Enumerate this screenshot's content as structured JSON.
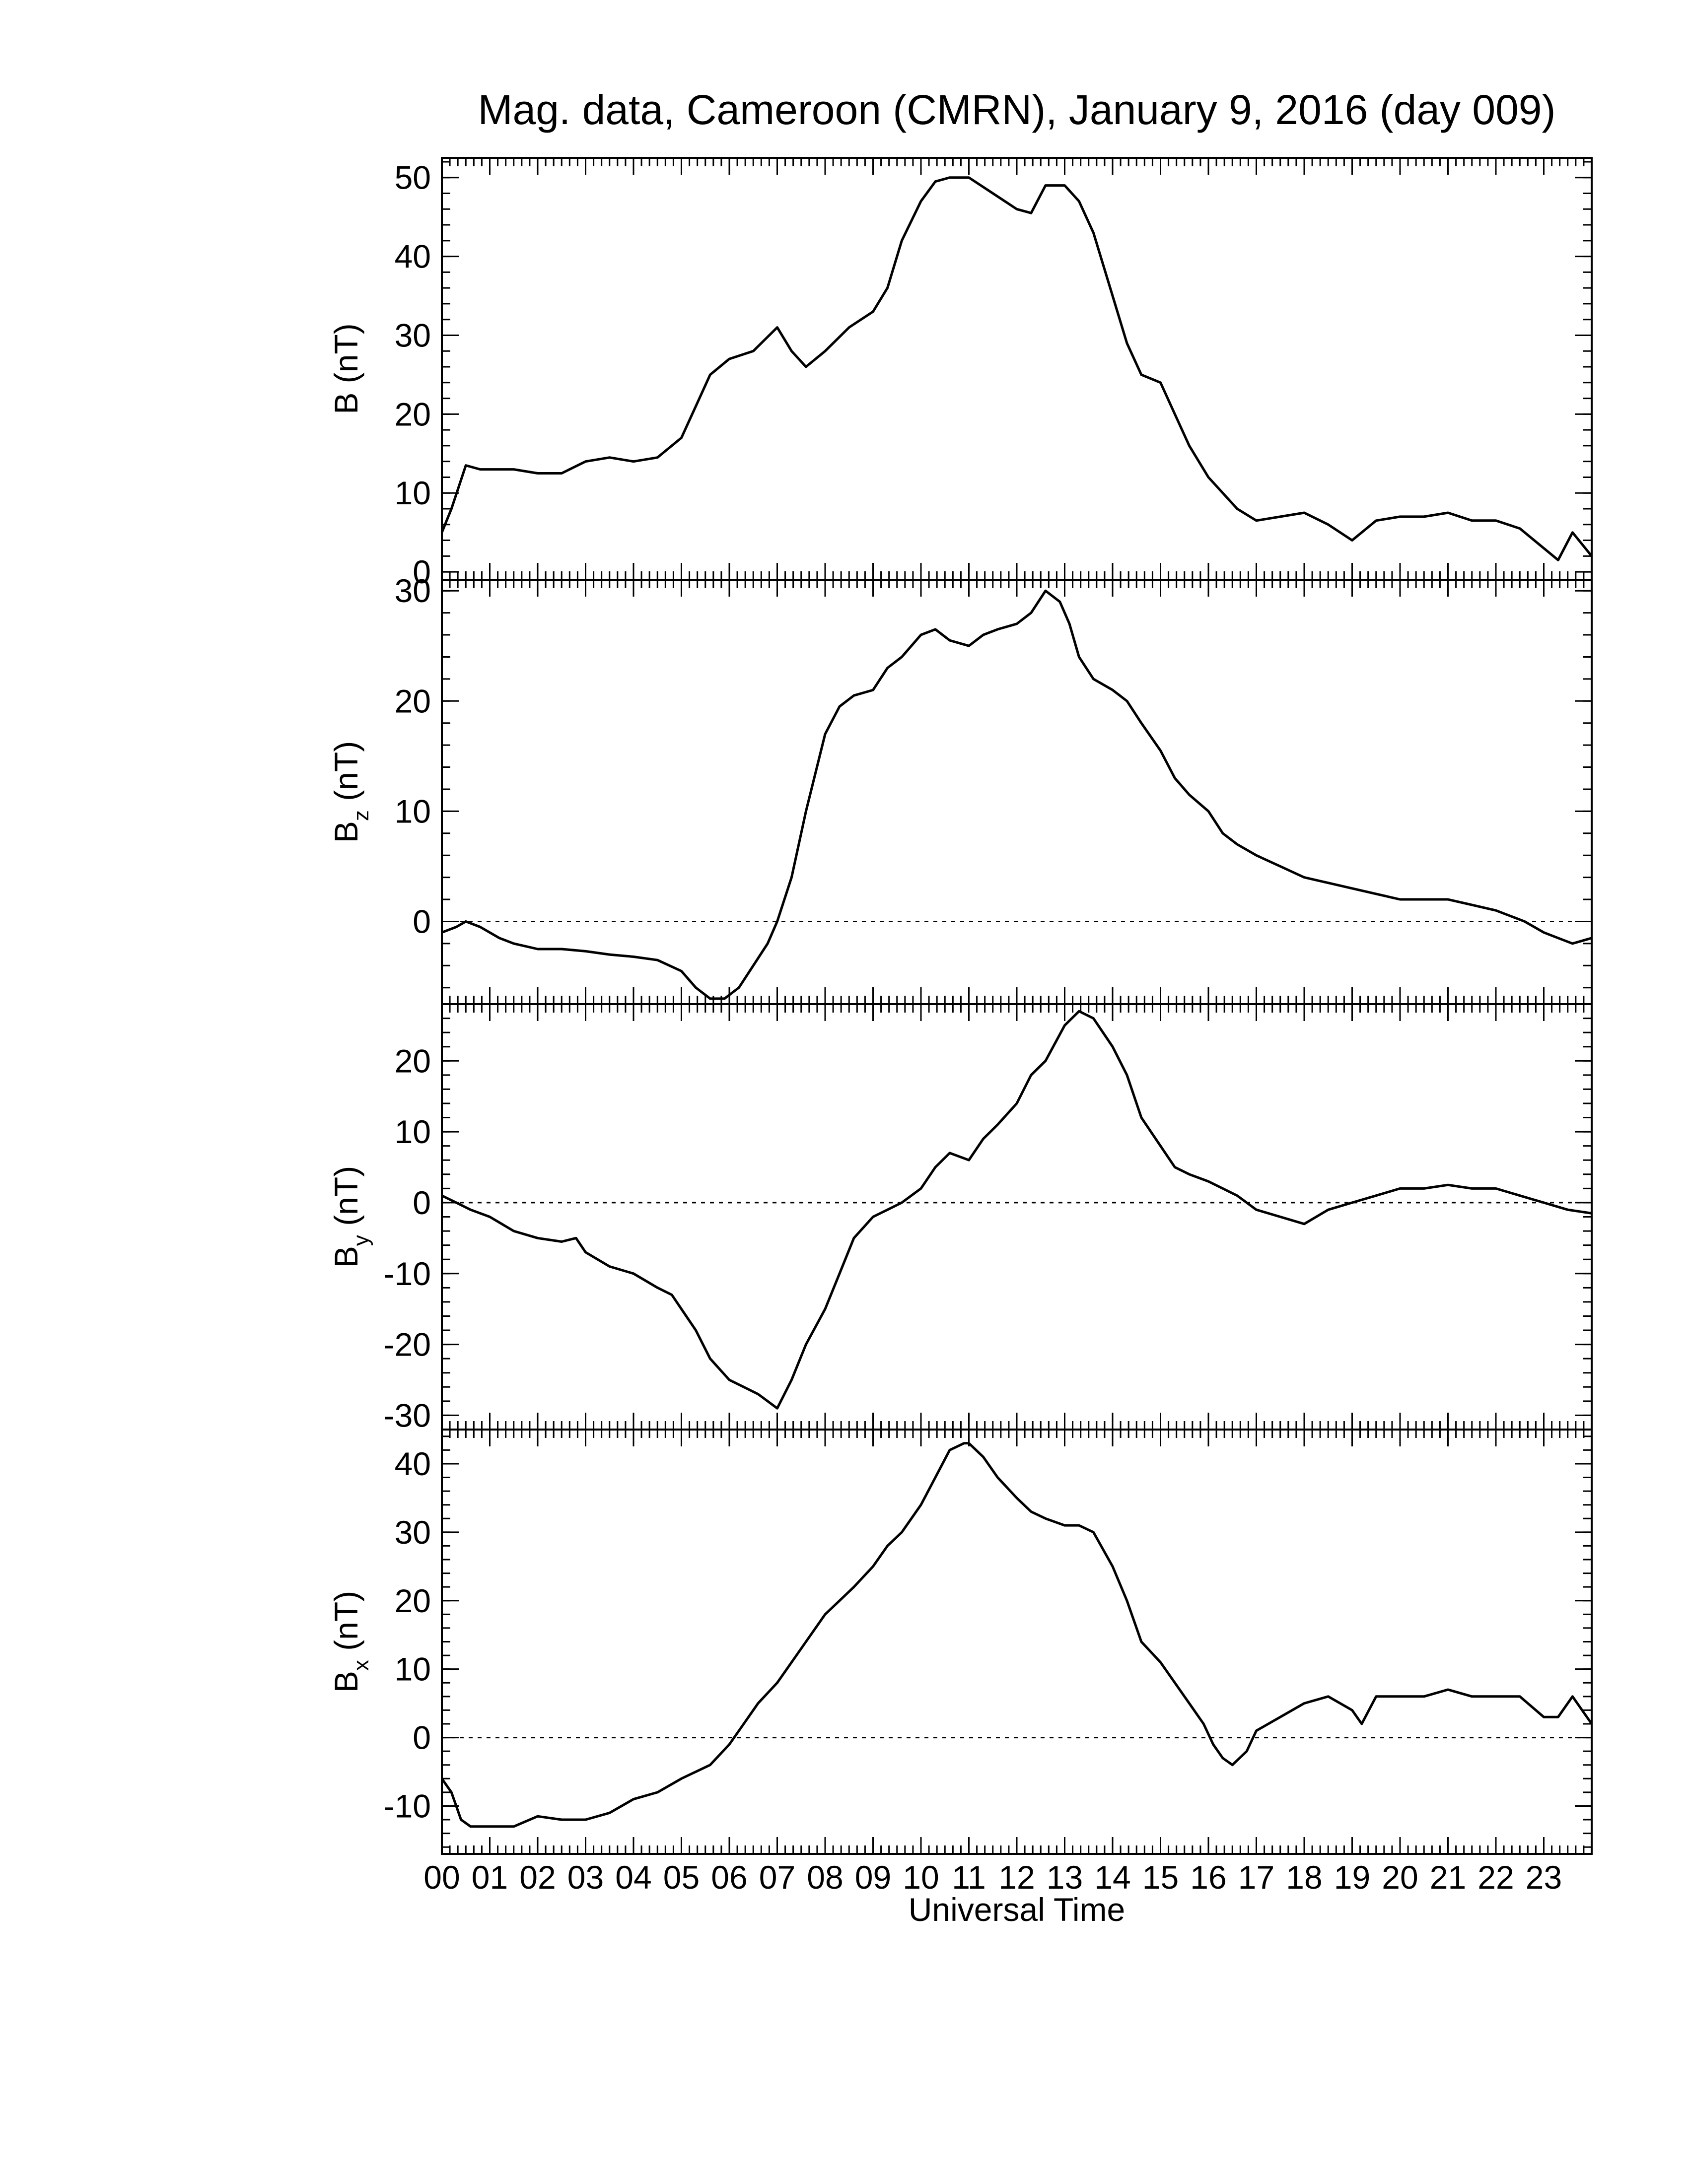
{
  "chart_data": {
    "type": "line",
    "title": "Mag. data, Cameroon (CMRN), January 9, 2016 (day 009)",
    "xlabel": "Universal Time",
    "x_unit": "hour",
    "xlim": [
      0,
      24
    ],
    "x_ticks": [
      "00",
      "01",
      "02",
      "03",
      "04",
      "05",
      "06",
      "07",
      "08",
      "09",
      "10",
      "11",
      "12",
      "13",
      "14",
      "15",
      "16",
      "17",
      "18",
      "19",
      "20",
      "21",
      "22",
      "23"
    ],
    "grid": false,
    "panels": [
      {
        "id": "B",
        "ylabel": "B (nT)",
        "ylabel_main": "B",
        "ylabel_sub": "",
        "ylabel_unit": "(nT)",
        "ylim": [
          -1,
          52.5
        ],
        "yticks": [
          0,
          10,
          20,
          30,
          40,
          50
        ],
        "zero_line": false,
        "series": [
          {
            "x": [
              0,
              0.2,
              0.5,
              0.8,
              1.2,
              1.5,
              2,
              2.5,
              3,
              3.5,
              4,
              4.5,
              5,
              5.3,
              5.6,
              6,
              6.5,
              7,
              7.3,
              7.6,
              8,
              8.5,
              9,
              9.3,
              9.6,
              10,
              10.3,
              10.6,
              11,
              11.5,
              12,
              12.3,
              12.6,
              13,
              13.3,
              13.6,
              14,
              14.3,
              14.6,
              15,
              15.3,
              15.6,
              16,
              16.3,
              16.6,
              17,
              17.5,
              18,
              18.5,
              19,
              19.2,
              19.5,
              20,
              20.5,
              21,
              21.5,
              22,
              22.5,
              23,
              23.3,
              23.6,
              24
            ],
            "y": [
              5,
              8,
              13.5,
              13,
              13,
              13,
              12.5,
              12.5,
              14,
              14.5,
              14,
              14.5,
              17,
              21,
              25,
              27,
              28,
              31,
              28,
              26,
              28,
              31,
              33,
              36,
              42,
              47,
              49.5,
              50,
              50,
              48,
              46,
              45.5,
              49,
              49,
              47,
              43,
              35,
              29,
              25,
              24,
              20,
              16,
              12,
              10,
              8,
              6.5,
              7,
              7.5,
              6,
              4,
              5,
              6.5,
              7,
              7,
              7.5,
              6.5,
              6.5,
              5.5,
              3,
              1.5,
              5,
              2
            ]
          }
        ]
      },
      {
        "id": "Bz",
        "ylabel": "Bz (nT)",
        "ylabel_main": "B",
        "ylabel_sub": "z",
        "ylabel_unit": "(nT)",
        "ylim": [
          -7.5,
          31
        ],
        "yticks": [
          0,
          10,
          20,
          30
        ],
        "zero_line": true,
        "series": [
          {
            "x": [
              0,
              0.3,
              0.5,
              0.8,
              1.2,
              1.5,
              2,
              2.5,
              3,
              3.5,
              4,
              4.5,
              5,
              5.3,
              5.6,
              5.9,
              6.2,
              6.5,
              6.8,
              7,
              7.3,
              7.6,
              8,
              8.3,
              8.6,
              9,
              9.3,
              9.6,
              10,
              10.3,
              10.6,
              11,
              11.3,
              11.6,
              12,
              12.3,
              12.6,
              12.9,
              13.1,
              13.3,
              13.6,
              14,
              14.3,
              14.6,
              15,
              15.3,
              15.6,
              16,
              16.3,
              16.6,
              17,
              17.5,
              18,
              18.5,
              19,
              19.5,
              20,
              20.5,
              21,
              21.5,
              22,
              22.3,
              22.6,
              23,
              23.3,
              23.6,
              24
            ],
            "y": [
              -1,
              -0.5,
              0,
              -0.5,
              -1.5,
              -2,
              -2.5,
              -2.5,
              -2.7,
              -3,
              -3.2,
              -3.5,
              -4.5,
              -6,
              -7,
              -7,
              -6,
              -4,
              -2,
              0,
              4,
              10,
              17,
              19.5,
              20.5,
              21,
              23,
              24,
              26,
              26.5,
              25.5,
              25,
              26,
              26.5,
              27,
              28,
              30,
              29,
              27,
              24,
              22,
              21,
              20,
              18,
              15.5,
              13,
              11.5,
              10,
              8,
              7,
              6,
              5,
              4,
              3.5,
              3,
              2.5,
              2,
              2,
              2,
              1.5,
              1,
              0.5,
              0,
              -1,
              -1.5,
              -2,
              -1.5
            ]
          }
        ]
      },
      {
        "id": "By",
        "ylabel": "By (nT)",
        "ylabel_main": "B",
        "ylabel_sub": "y",
        "ylabel_unit": "(nT)",
        "ylim": [
          -32,
          28
        ],
        "yticks": [
          -30,
          -20,
          -10,
          0,
          10,
          20
        ],
        "zero_line": true,
        "series": [
          {
            "x": [
              0,
              0.3,
              0.6,
              1,
              1.5,
              2,
              2.5,
              2.8,
              3,
              3.5,
              4,
              4.5,
              4.8,
              5,
              5.3,
              5.6,
              6,
              6.3,
              6.6,
              6.8,
              7,
              7.3,
              7.6,
              8,
              8.3,
              8.6,
              9,
              9.3,
              9.6,
              10,
              10.3,
              10.6,
              11,
              11.3,
              11.6,
              12,
              12.3,
              12.6,
              13,
              13.3,
              13.6,
              14,
              14.3,
              14.6,
              15,
              15.3,
              15.6,
              16,
              16.3,
              16.6,
              17,
              17.5,
              18,
              18.5,
              19,
              19.5,
              20,
              20.5,
              21,
              21.5,
              22,
              22.5,
              23,
              23.5,
              24
            ],
            "y": [
              1,
              0,
              -1,
              -2,
              -4,
              -5,
              -5.5,
              -5,
              -7,
              -9,
              -10,
              -12,
              -13,
              -15,
              -18,
              -22,
              -25,
              -26,
              -27,
              -28,
              -29,
              -25,
              -20,
              -15,
              -10,
              -5,
              -2,
              -1,
              0,
              2,
              5,
              7,
              6,
              9,
              11,
              14,
              18,
              20,
              25,
              27,
              26,
              22,
              18,
              12,
              8,
              5,
              4,
              3,
              2,
              1,
              -1,
              -2,
              -3,
              -1,
              0,
              1,
              2,
              2,
              2.5,
              2,
              2,
              1,
              0,
              -1,
              -1.5
            ]
          }
        ]
      },
      {
        "id": "Bx",
        "ylabel": "Bx (nT)",
        "ylabel_main": "B",
        "ylabel_sub": "x",
        "ylabel_unit": "(nT)",
        "ylim": [
          -17,
          45
        ],
        "yticks": [
          -10,
          0,
          10,
          20,
          30,
          40
        ],
        "zero_line": true,
        "series": [
          {
            "x": [
              0,
              0.2,
              0.4,
              0.6,
              1,
              1.5,
              2,
              2.5,
              3,
              3.5,
              4,
              4.5,
              5,
              5.3,
              5.6,
              6,
              6.3,
              6.6,
              7,
              7.3,
              7.6,
              8,
              8.3,
              8.6,
              9,
              9.3,
              9.6,
              10,
              10.3,
              10.6,
              10.9,
              11,
              11.3,
              11.6,
              12,
              12.3,
              12.6,
              13,
              13.3,
              13.6,
              14,
              14.3,
              14.6,
              15,
              15.3,
              15.6,
              15.9,
              16.1,
              16.3,
              16.5,
              16.8,
              17,
              17.5,
              18,
              18.5,
              19,
              19.2,
              19.5,
              20,
              20.5,
              21,
              21.5,
              22,
              22.5,
              23,
              23.3,
              23.6,
              24
            ],
            "y": [
              -6,
              -8,
              -12,
              -13,
              -13,
              -13,
              -11.5,
              -12,
              -12,
              -11,
              -9,
              -8,
              -6,
              -5,
              -4,
              -1,
              2,
              5,
              8,
              11,
              14,
              18,
              20,
              22,
              25,
              28,
              30,
              34,
              38,
              42,
              43,
              43,
              41,
              38,
              35,
              33,
              32,
              31,
              31,
              30,
              25,
              20,
              14,
              11,
              8,
              5,
              2,
              -1,
              -3,
              -4,
              -2,
              1,
              3,
              5,
              6,
              4,
              2,
              6,
              6,
              6,
              7,
              6,
              6,
              6,
              3,
              3,
              6,
              2
            ]
          }
        ]
      }
    ]
  }
}
